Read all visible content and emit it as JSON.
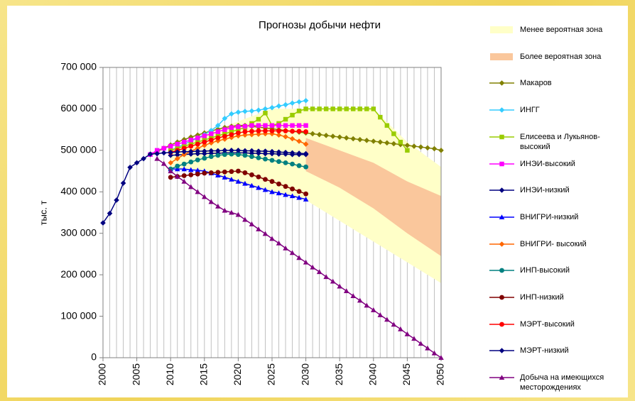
{
  "chart_data": {
    "type": "line",
    "title": "Прогнозы добычи нефти",
    "ylabel": "тыс. т",
    "xlim": [
      2000,
      2050
    ],
    "ylim": [
      0,
      700000
    ],
    "xticks": [
      2000,
      2005,
      2010,
      2015,
      2020,
      2025,
      2030,
      2035,
      2040,
      2045,
      2050
    ],
    "x_minor_ticks": [
      2000,
      2001,
      2002,
      2003,
      2004,
      2005,
      2006,
      2007,
      2008,
      2009,
      2010,
      2011,
      2012,
      2013,
      2014,
      2015,
      2016,
      2017,
      2018,
      2019,
      2020,
      2021,
      2022,
      2023,
      2024,
      2025,
      2026,
      2027,
      2028,
      2029,
      2030,
      2031,
      2032,
      2033,
      2034,
      2035,
      2036,
      2037,
      2038,
      2039,
      2040,
      2041,
      2042,
      2043,
      2044,
      2045,
      2046,
      2047,
      2048,
      2049,
      2050
    ],
    "yticks": [
      0,
      {
        "value": 100000,
        "label": "100 000"
      },
      {
        "value": 200000,
        "label": "200 000"
      },
      {
        "value": 300000,
        "label": "300 000"
      },
      {
        "value": 400000,
        "label": "400 000"
      },
      {
        "value": 500000,
        "label": "500 000"
      },
      {
        "value": 600000,
        "label": "600 000"
      },
      {
        "value": 700000,
        "label": "700 000"
      }
    ],
    "grid": "x",
    "legend": "right",
    "zones": [
      {
        "name": "Менее вероятная зона",
        "color": "#ffffc8",
        "x": [
          2010,
          2015,
          2020,
          2025,
          2030,
          2035,
          2040,
          2045,
          2050
        ],
        "high": [
          500000,
          540000,
          570000,
          600000,
          600000,
          600000,
          600000,
          520000,
          460000
        ],
        "low": [
          455000,
          450000,
          420000,
          400000,
          380000,
          330000,
          280000,
          230000,
          180000
        ]
      },
      {
        "name": "Более вероятная зона",
        "color": "#fac79c",
        "x": [
          2030,
          2035,
          2040,
          2045,
          2050
        ],
        "high": [
          530000,
          500000,
          470000,
          425000,
          390000
        ],
        "low": [
          450000,
          410000,
          360000,
          300000,
          245000
        ]
      }
    ],
    "series": [
      {
        "name": "Макаров",
        "color": "#808000",
        "marker": "diamond",
        "x": [
          2007,
          2008,
          2009,
          2010,
          2011,
          2012,
          2013,
          2014,
          2015,
          2016,
          2017,
          2018,
          2019,
          2020,
          2021,
          2022,
          2023,
          2024,
          2025,
          2026,
          2027,
          2028,
          2029,
          2030,
          2031,
          2032,
          2033,
          2034,
          2035,
          2036,
          2037,
          2038,
          2039,
          2040,
          2041,
          2042,
          2043,
          2044,
          2045,
          2046,
          2047,
          2048,
          2049,
          2050
        ],
        "values": [
          490000,
          497000,
          505000,
          513000,
          520000,
          526000,
          532000,
          537000,
          542000,
          547000,
          551000,
          555000,
          558000,
          560000,
          560000,
          558000,
          556000,
          554000,
          552000,
          550000,
          548000,
          546000,
          544000,
          542000,
          540000,
          538000,
          536000,
          534000,
          532000,
          530000,
          528000,
          526000,
          524000,
          522000,
          520000,
          518000,
          516000,
          514000,
          512000,
          510000,
          508000,
          506000,
          504000,
          500000
        ]
      },
      {
        "name": "ИНГГ",
        "color": "#33ccff",
        "marker": "diamond",
        "x": [
          2010,
          2011,
          2012,
          2013,
          2014,
          2015,
          2016,
          2017,
          2018,
          2019,
          2020,
          2021,
          2022,
          2023,
          2024,
          2025,
          2026,
          2027,
          2028,
          2029,
          2030
        ],
        "values": [
          500000,
          507000,
          515000,
          522000,
          530000,
          538000,
          548000,
          560000,
          577000,
          588000,
          592000,
          594000,
          595000,
          597000,
          600000,
          603000,
          607000,
          610000,
          614000,
          617000,
          620000
        ]
      },
      {
        "name": "Елисеева и Лукьянов-высокий",
        "color": "#99cc00",
        "marker": "square",
        "x": [
          2010,
          2011,
          2012,
          2013,
          2014,
          2015,
          2016,
          2017,
          2018,
          2019,
          2020,
          2021,
          2022,
          2023,
          2024,
          2025,
          2026,
          2027,
          2028,
          2029,
          2030,
          2031,
          2032,
          2033,
          2034,
          2035,
          2036,
          2037,
          2038,
          2039,
          2040,
          2041,
          2042,
          2043,
          2044,
          2045
        ],
        "values": [
          500000,
          505000,
          510000,
          515000,
          520000,
          525000,
          530000,
          535000,
          540000,
          545000,
          550000,
          555000,
          565000,
          575000,
          590000,
          560000,
          565000,
          575000,
          585000,
          595000,
          600000,
          600000,
          600000,
          600000,
          600000,
          600000,
          600000,
          600000,
          600000,
          600000,
          600000,
          580000,
          560000,
          540000,
          520000,
          500000
        ]
      },
      {
        "name": "ИНЭИ-высокий",
        "color": "#ff00ff",
        "marker": "square",
        "x": [
          2007,
          2008,
          2009,
          2010,
          2011,
          2012,
          2013,
          2014,
          2015,
          2016,
          2017,
          2018,
          2019,
          2020,
          2021,
          2022,
          2023,
          2024,
          2025,
          2026,
          2027,
          2028,
          2029,
          2030
        ],
        "values": [
          490000,
          500000,
          505000,
          510000,
          515000,
          520000,
          525000,
          530000,
          535000,
          540000,
          545000,
          550000,
          555000,
          557000,
          558000,
          560000,
          560000,
          560000,
          560000,
          560000,
          560000,
          560000,
          560000,
          560000
        ]
      },
      {
        "name": "ИНЭИ-низкий",
        "color": "#000080",
        "marker": "diamond",
        "x": [
          2010,
          2011,
          2012,
          2013,
          2014,
          2015,
          2016,
          2017,
          2018,
          2019,
          2020,
          2021,
          2022,
          2023,
          2024,
          2025,
          2026,
          2027,
          2028,
          2029,
          2030
        ],
        "values": [
          488000,
          489000,
          490000,
          491000,
          492000,
          492000,
          493000,
          493000,
          494000,
          494000,
          494000,
          494000,
          493000,
          493000,
          492000,
          492000,
          491000,
          491000,
          490000,
          490000,
          490000
        ]
      },
      {
        "name": "ВНИГРИ-низкий",
        "color": "#0000ff",
        "marker": "triangle",
        "x": [
          2010,
          2011,
          2012,
          2013,
          2014,
          2015,
          2016,
          2017,
          2018,
          2019,
          2020,
          2021,
          2022,
          2023,
          2024,
          2025,
          2026,
          2027,
          2028,
          2029,
          2030
        ],
        "values": [
          455000,
          455000,
          455000,
          453000,
          452000,
          450000,
          445000,
          440000,
          435000,
          430000,
          425000,
          420000,
          415000,
          410000,
          405000,
          400000,
          397000,
          393000,
          390000,
          386000,
          382000
        ]
      },
      {
        "name": "ВНИГРИ- высокий",
        "color": "#ff6600",
        "marker": "diamond",
        "x": [
          2010,
          2011,
          2012,
          2013,
          2014,
          2015,
          2016,
          2017,
          2018,
          2019,
          2020,
          2021,
          2022,
          2023,
          2024,
          2025,
          2026,
          2027,
          2028,
          2029,
          2030
        ],
        "values": [
          470000,
          480000,
          490000,
          498000,
          505000,
          512000,
          518000,
          523000,
          527000,
          531000,
          535000,
          537000,
          538000,
          539000,
          540000,
          540000,
          537000,
          533000,
          528000,
          522000,
          515000
        ]
      },
      {
        "name": "ИНП-высокий",
        "color": "#008080",
        "marker": "circle",
        "x": [
          2010,
          2011,
          2012,
          2013,
          2014,
          2015,
          2016,
          2017,
          2018,
          2019,
          2020,
          2021,
          2022,
          2023,
          2024,
          2025,
          2026,
          2027,
          2028,
          2029,
          2030
        ],
        "values": [
          455000,
          462000,
          467000,
          472000,
          477000,
          481000,
          485000,
          488000,
          490000,
          491000,
          490000,
          488000,
          485000,
          482000,
          479000,
          476000,
          473000,
          470000,
          467000,
          463000,
          460000
        ]
      },
      {
        "name": "ИНП-низкий",
        "color": "#800000",
        "marker": "circle",
        "x": [
          2010,
          2011,
          2012,
          2013,
          2014,
          2015,
          2016,
          2017,
          2018,
          2019,
          2020,
          2021,
          2022,
          2023,
          2024,
          2025,
          2026,
          2027,
          2028,
          2029,
          2030
        ],
        "values": [
          435000,
          437000,
          439000,
          441000,
          443000,
          445000,
          446000,
          447000,
          448000,
          449000,
          450000,
          446000,
          441000,
          436000,
          430000,
          425000,
          419000,
          413000,
          407000,
          401000,
          395000
        ]
      },
      {
        "name": "МЭРТ-высокий",
        "color": "#ff0000",
        "marker": "circle",
        "x": [
          2010,
          2011,
          2012,
          2013,
          2014,
          2015,
          2016,
          2017,
          2018,
          2019,
          2020,
          2021,
          2022,
          2023,
          2024,
          2025,
          2026,
          2027,
          2028,
          2029,
          2030
        ],
        "values": [
          495000,
          500000,
          505000,
          510000,
          515000,
          520000,
          525000,
          530000,
          534000,
          538000,
          542000,
          545000,
          546000,
          547000,
          547000,
          547000,
          547000,
          547000,
          546000,
          546000,
          545000
        ]
      },
      {
        "name": "МЭРТ-низкий",
        "color": "#000080",
        "marker": "diamond",
        "x": [
          2000,
          2001,
          2002,
          2003,
          2004,
          2005,
          2006,
          2007,
          2008,
          2009,
          2010,
          2011,
          2012,
          2013,
          2014,
          2015,
          2016,
          2017,
          2018,
          2019,
          2020,
          2021,
          2022,
          2023,
          2024,
          2025,
          2026,
          2027,
          2028,
          2029,
          2030
        ],
        "values": [
          325000,
          348000,
          380000,
          421000,
          459000,
          470000,
          480000,
          491000,
          492000,
          494000,
          495000,
          496000,
          497000,
          497000,
          498000,
          498000,
          499000,
          499000,
          500000,
          500000,
          500000,
          499000,
          499000,
          498000,
          498000,
          497000,
          496000,
          495000,
          494000,
          493000,
          492000
        ]
      },
      {
        "name": "Добыча на имеющихся месторождениях",
        "color": "#800080",
        "marker": "triangle",
        "x": [
          2008,
          2009,
          2010,
          2011,
          2012,
          2013,
          2014,
          2015,
          2016,
          2017,
          2018,
          2019,
          2020,
          2021,
          2022,
          2023,
          2024,
          2025,
          2026,
          2027,
          2028,
          2029,
          2030,
          2031,
          2032,
          2033,
          2034,
          2035,
          2036,
          2037,
          2038,
          2039,
          2040,
          2041,
          2042,
          2043,
          2044,
          2045,
          2046,
          2047,
          2048,
          2049,
          2050
        ],
        "values": [
          480000,
          468000,
          450000,
          437000,
          425000,
          412000,
          400000,
          388000,
          376000,
          365000,
          355000,
          350000,
          345000,
          333000,
          322000,
          310000,
          299000,
          287000,
          276000,
          264000,
          253000,
          241000,
          230000,
          218000,
          207000,
          195000,
          184000,
          172000,
          161000,
          149000,
          138000,
          126000,
          115000,
          103000,
          92000,
          80000,
          69000,
          57000,
          46000,
          34000,
          23000,
          11000,
          0
        ]
      }
    ]
  }
}
